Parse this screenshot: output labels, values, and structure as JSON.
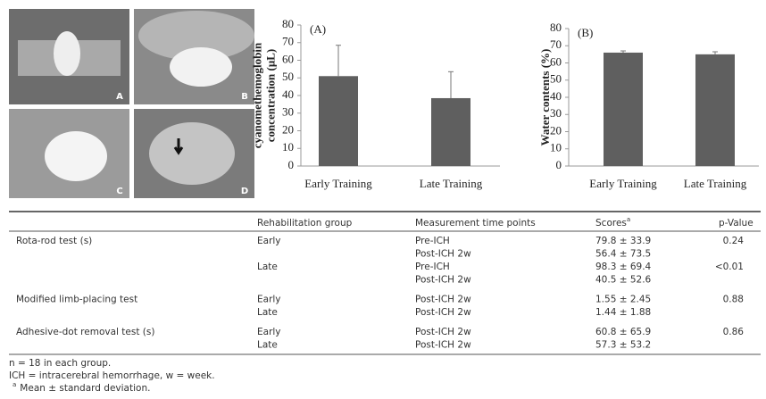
{
  "photos": {
    "labels": [
      "A",
      "B",
      "C",
      "D"
    ]
  },
  "chart_data": [
    {
      "type": "bar",
      "panel": "(A)",
      "ylabel": [
        "cyanomethemoglobin",
        "concentration (μL)"
      ],
      "categories": [
        "Early Training",
        "Late Training"
      ],
      "values": [
        51,
        38.5
      ],
      "errors": [
        17.5,
        15
      ],
      "color": "#5f5f5f",
      "ylim": [
        0,
        80
      ],
      "yticks": [
        0,
        10,
        20,
        30,
        40,
        50,
        60,
        70,
        80
      ]
    },
    {
      "type": "bar",
      "panel": "(B)",
      "ylabel": "Water contents (%)",
      "categories": [
        "Early Training",
        "Late Training"
      ],
      "values": [
        66,
        65
      ],
      "errors": [
        1,
        1.5
      ],
      "color": "#5f5f5f",
      "ylim": [
        0,
        80
      ],
      "yticks": [
        0,
        10,
        20,
        30,
        40,
        50,
        60,
        70,
        80
      ]
    }
  ],
  "table": {
    "header": {
      "group": "Rehabilitation group",
      "time": "Measurement time points",
      "score": "Scores",
      "score_sup": "a",
      "p": "p-Value"
    },
    "rows": [
      {
        "test": "Rota-rod test (s)",
        "entries": [
          {
            "group": "Early",
            "time": "Pre-ICH",
            "score": "79.8 ± 33.9",
            "p": "0.24"
          },
          {
            "time": "Post-ICH 2w",
            "score": "56.4 ± 73.5"
          },
          {
            "group": "Late",
            "time": "Pre-ICH",
            "score": "98.3 ± 69.4",
            "p": "<0.01"
          },
          {
            "time": "Post-ICH 2w",
            "score": "40.5 ± 52.6"
          }
        ]
      },
      {
        "test": "Modified limb-placing test",
        "entries": [
          {
            "group": "Early",
            "time": "Post-ICH 2w",
            "score": "1.55 ± 2.45",
            "p": "0.88"
          },
          {
            "group": "Late",
            "time": "Post-ICH 2w",
            "score": "1.44 ± 1.88"
          }
        ]
      },
      {
        "test": "Adhesive-dot removal test (s)",
        "entries": [
          {
            "group": "Early",
            "time": "Post-ICH 2w",
            "score": "60.8 ± 65.9",
            "p": "0.86"
          },
          {
            "group": "Late",
            "time": "Post-ICH 2w",
            "score": "57.3 ± 53.2"
          }
        ]
      }
    ],
    "footnotes": [
      "n = 18 in each group.",
      "ICH = intracerebral hemorrhage, w = week."
    ],
    "footnote_sup": "a",
    "footnote_sup_text": "Mean ± standard deviation."
  }
}
